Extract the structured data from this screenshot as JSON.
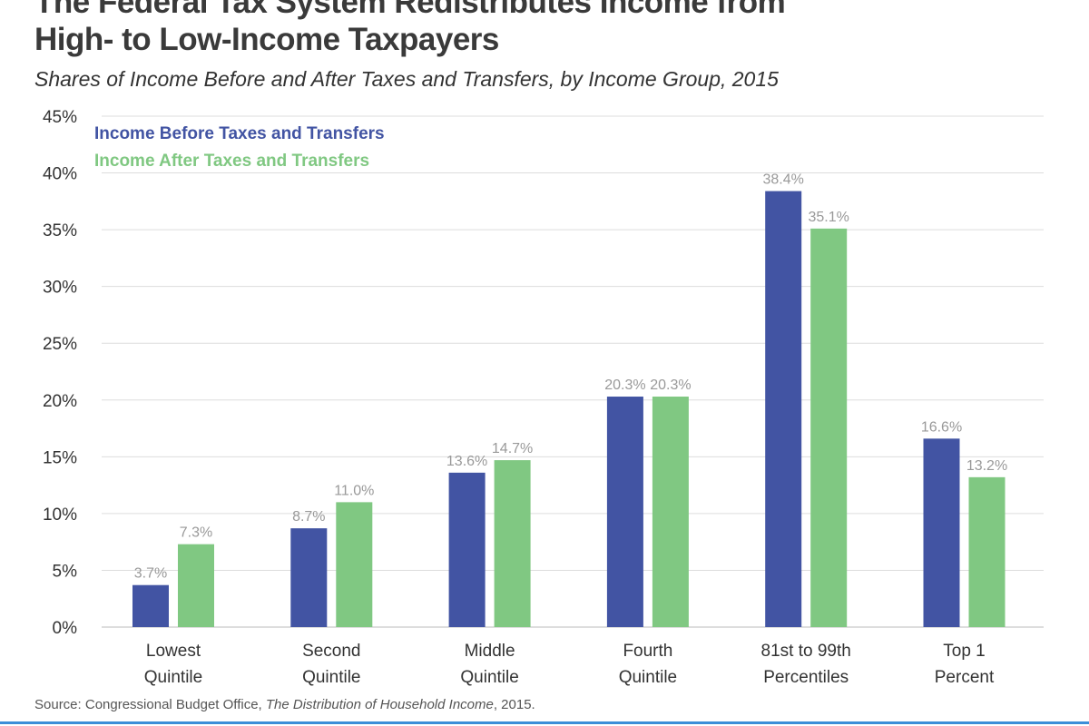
{
  "chart_data": {
    "type": "bar",
    "title_lines": [
      "The Federal Tax System Redistributes Income from",
      "High- to Low-Income Taxpayers"
    ],
    "subtitle": "Shares of Income Before and After Taxes and Transfers, by Income Group, 2015",
    "categories": [
      [
        "Lowest",
        "Quintile"
      ],
      [
        "Second",
        "Quintile"
      ],
      [
        "Middle",
        "Quintile"
      ],
      [
        "Fourth",
        "Quintile"
      ],
      [
        "81st to 99th",
        "Percentiles"
      ],
      [
        "Top 1",
        "Percent"
      ]
    ],
    "series": [
      {
        "name": "Income Before Taxes and Transfers",
        "color": "#4254a3",
        "values": [
          3.7,
          8.7,
          13.6,
          20.3,
          38.4,
          16.6
        ]
      },
      {
        "name": "Income After Taxes and Transfers",
        "color": "#80c882",
        "values": [
          7.3,
          11.0,
          14.7,
          20.3,
          35.1,
          13.2
        ]
      }
    ],
    "ylim": [
      0,
      45
    ],
    "yticks": [
      0,
      5,
      10,
      15,
      20,
      25,
      30,
      35,
      40,
      45
    ],
    "ytick_format": "%",
    "grid": true,
    "legend_placement": "top-left",
    "xlabel": "",
    "ylabel": ""
  },
  "source": {
    "prefix": "Source: Congressional Budget Office, ",
    "italic": "The Distribution of Household Income",
    "suffix": ", 2015."
  }
}
